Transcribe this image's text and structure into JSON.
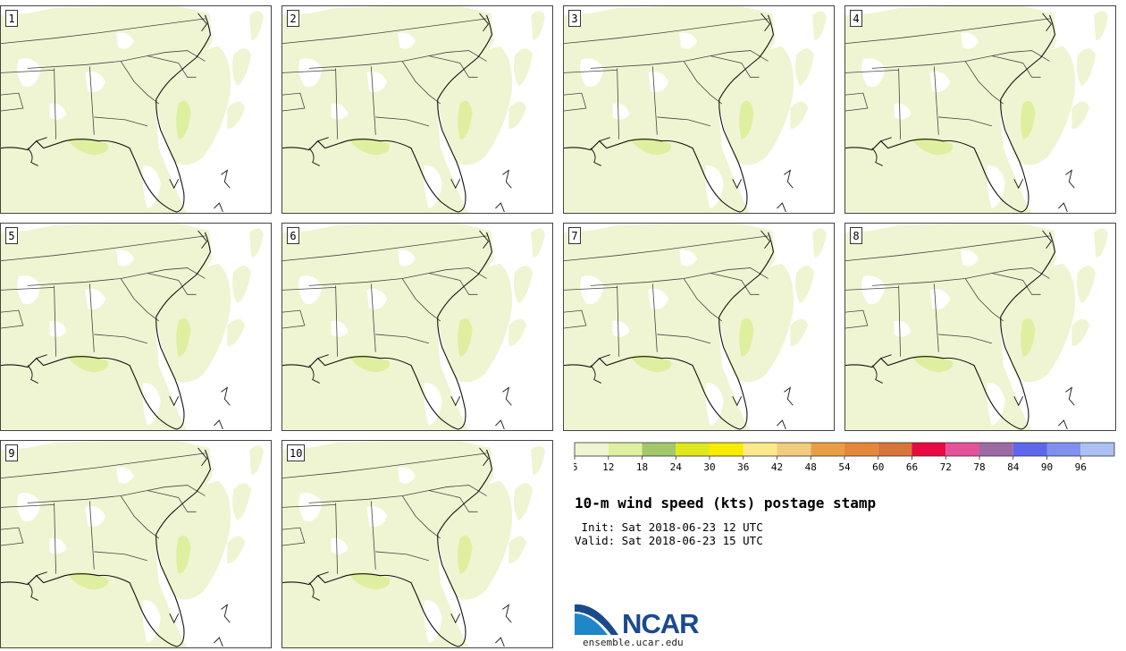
{
  "panels": [
    {
      "label": "1"
    },
    {
      "label": "2"
    },
    {
      "label": "3"
    },
    {
      "label": "4"
    },
    {
      "label": "5"
    },
    {
      "label": "6"
    },
    {
      "label": "7"
    },
    {
      "label": "8"
    },
    {
      "label": "9"
    },
    {
      "label": "10"
    }
  ],
  "colorbar": {
    "tick_labels": [
      "6",
      "12",
      "18",
      "24",
      "30",
      "36",
      "42",
      "48",
      "54",
      "60",
      "66",
      "72",
      "78",
      "84",
      "90",
      "96"
    ],
    "colors": [
      "#eff5d2",
      "#dfefa0",
      "#a3c86a",
      "#dfe81a",
      "#f8ec00",
      "#fae98a",
      "#f2cc7e",
      "#ea9e44",
      "#e4873a",
      "#d9743a",
      "#ea0a42",
      "#e4529a",
      "#9d6aa5",
      "#5f67ec",
      "#7f90ef",
      "#adc0f4"
    ]
  },
  "map_colors": {
    "light": "#eff5d2",
    "medium": "#dfefa0"
  },
  "title": "10-m wind speed (kts) postage stamp",
  "init_text": " Init: Sat 2018-06-23 12 UTC",
  "valid_text": "Valid: Sat 2018-06-23 15 UTC",
  "logo": {
    "word": "NCAR",
    "url": "ensemble.ucar.edu"
  }
}
